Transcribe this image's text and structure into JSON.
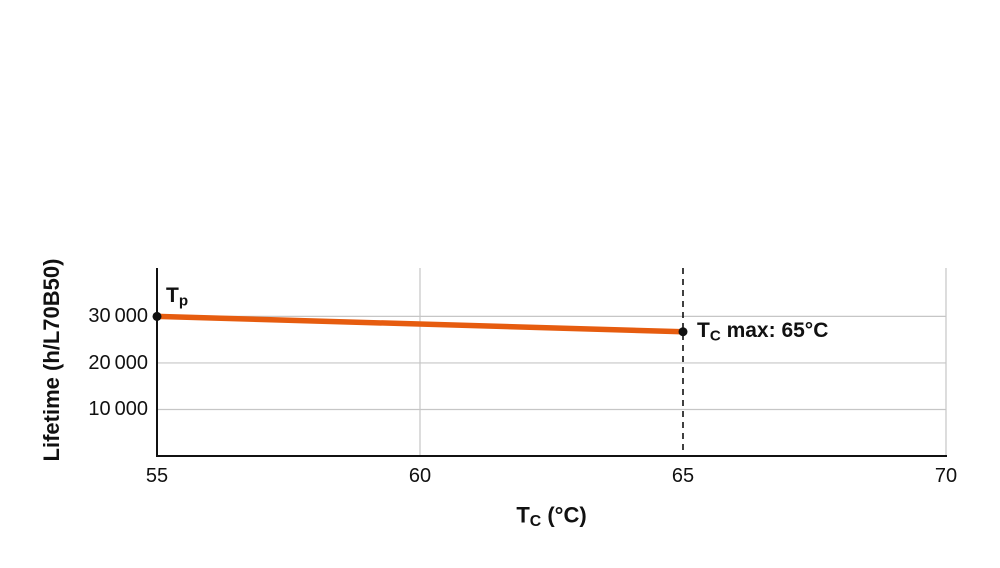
{
  "page": {
    "background": "#ffffff"
  },
  "colors": {
    "grid": "#c6c6c6",
    "axis": "#111111",
    "text": "#111111",
    "series_orange": "#e65c0f",
    "marker": "#111111"
  },
  "chart_data": {
    "type": "line",
    "title": "",
    "ylabel": "Lifetime (h/L70B50)",
    "xlabel_parts": {
      "main": "T",
      "sub": "C",
      "rest": " (°C)"
    },
    "xlim": [
      55,
      70
    ],
    "ylim": [
      0,
      40400
    ],
    "xticks": {
      "values": [
        55,
        60,
        65,
        70
      ],
      "labels": [
        "55",
        "60",
        "65",
        "70"
      ]
    },
    "yticks": {
      "values": [
        10000,
        20000,
        30000
      ],
      "labels": [
        "10 000",
        "20 000",
        "30 000"
      ]
    },
    "gridlines": {
      "horizontal_values": [
        10000,
        20000,
        30000
      ],
      "vertical_values": [
        60,
        70
      ]
    },
    "series": [
      {
        "name": "lifetime-vs-tc",
        "color": "#e65c0f",
        "marker_color": "#111111",
        "points": [
          {
            "x": 55,
            "y": 30000
          },
          {
            "x": 65,
            "y": 26700
          }
        ]
      }
    ],
    "reference_line": {
      "x": 65,
      "style": "dashed",
      "color": "#111111"
    },
    "annotations": [
      {
        "id": "tp",
        "main": "T",
        "sub": "p",
        "rest": "",
        "x": 55,
        "y": 30000,
        "placement": "above-right"
      },
      {
        "id": "tc-max",
        "main": "T",
        "sub": "C",
        "rest": " max: 65°C",
        "x": 65,
        "y": 26700,
        "placement": "right"
      }
    ],
    "legend": "none",
    "grid": "on"
  }
}
